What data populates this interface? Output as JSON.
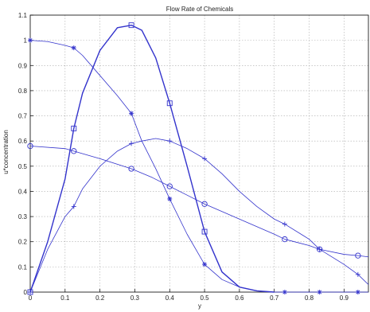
{
  "chart_data": {
    "type": "line",
    "title": "Flow Rate of Chemicals",
    "xlabel": "y",
    "ylabel": "u*concentration",
    "xlim": [
      0,
      0.97
    ],
    "ylim": [
      0,
      1.1
    ],
    "xticks": [
      "0",
      "0.1",
      "0.2",
      "0.3",
      "0.4",
      "0.5",
      "0.6",
      "0.7",
      "0.8",
      "0.9"
    ],
    "yticks": [
      "0",
      "0.1",
      "0.2",
      "0.3",
      "0.4",
      "0.5",
      "0.6",
      "0.7",
      "0.8",
      "0.9",
      "1",
      "1.1"
    ],
    "grid": true,
    "legend": null,
    "line_color": "#3333cc",
    "series": [
      {
        "marker": "square",
        "linewidth": 1.4,
        "x": [
          0,
          0.05,
          0.1,
          0.125,
          0.15,
          0.2,
          0.25,
          0.29,
          0.32,
          0.36,
          0.4,
          0.45,
          0.5,
          0.55,
          0.6,
          0.65,
          0.7
        ],
        "y": [
          0,
          0.2,
          0.45,
          0.65,
          0.79,
          0.96,
          1.05,
          1.06,
          1.04,
          0.93,
          0.75,
          0.5,
          0.24,
          0.08,
          0.02,
          0.005,
          0
        ],
        "marked_x": [
          0,
          0.125,
          0.29,
          0.4,
          0.5
        ],
        "marked_y": [
          0,
          0.65,
          1.06,
          0.75,
          0.24
        ]
      },
      {
        "marker": "star",
        "linewidth": 0.8,
        "x": [
          0,
          0.05,
          0.1,
          0.125,
          0.15,
          0.2,
          0.25,
          0.29,
          0.32,
          0.36,
          0.4,
          0.45,
          0.5,
          0.55,
          0.6,
          0.65,
          0.7,
          0.75,
          0.8,
          0.85,
          0.9,
          0.95,
          0.97
        ],
        "y": [
          1.0,
          0.995,
          0.98,
          0.97,
          0.94,
          0.86,
          0.78,
          0.71,
          0.6,
          0.49,
          0.37,
          0.23,
          0.11,
          0.05,
          0.02,
          0.005,
          0,
          0,
          0,
          0,
          0,
          0,
          0
        ],
        "marked_x": [
          0,
          0.125,
          0.29,
          0.4,
          0.5,
          0.73,
          0.83,
          0.94
        ],
        "marked_y": [
          1.0,
          0.97,
          0.71,
          0.37,
          0.11,
          0,
          0,
          0
        ]
      },
      {
        "marker": "circle",
        "linewidth": 0.8,
        "x": [
          0,
          0.1,
          0.125,
          0.2,
          0.29,
          0.35,
          0.4,
          0.45,
          0.5,
          0.6,
          0.7,
          0.73,
          0.8,
          0.83,
          0.9,
          0.94,
          0.97
        ],
        "y": [
          0.58,
          0.57,
          0.56,
          0.53,
          0.49,
          0.455,
          0.42,
          0.385,
          0.35,
          0.29,
          0.23,
          0.21,
          0.185,
          0.17,
          0.15,
          0.145,
          0.14
        ],
        "marked_x": [
          0,
          0.125,
          0.29,
          0.4,
          0.5,
          0.73,
          0.83,
          0.94
        ],
        "marked_y": [
          0.58,
          0.56,
          0.49,
          0.42,
          0.35,
          0.21,
          0.17,
          0.145
        ]
      },
      {
        "marker": "plus",
        "linewidth": 0.8,
        "x": [
          0,
          0.05,
          0.1,
          0.125,
          0.15,
          0.2,
          0.25,
          0.29,
          0.32,
          0.36,
          0.4,
          0.45,
          0.5,
          0.55,
          0.6,
          0.65,
          0.7,
          0.73,
          0.8,
          0.83,
          0.9,
          0.94,
          0.97
        ],
        "y": [
          0,
          0.17,
          0.3,
          0.34,
          0.41,
          0.5,
          0.56,
          0.59,
          0.6,
          0.61,
          0.6,
          0.57,
          0.53,
          0.47,
          0.4,
          0.34,
          0.29,
          0.27,
          0.21,
          0.17,
          0.11,
          0.07,
          0.03
        ],
        "marked_x": [
          0,
          0.125,
          0.29,
          0.4,
          0.5,
          0.73,
          0.83,
          0.94
        ],
        "marked_y": [
          0,
          0.34,
          0.59,
          0.6,
          0.53,
          0.27,
          0.17,
          0.07
        ]
      }
    ]
  }
}
